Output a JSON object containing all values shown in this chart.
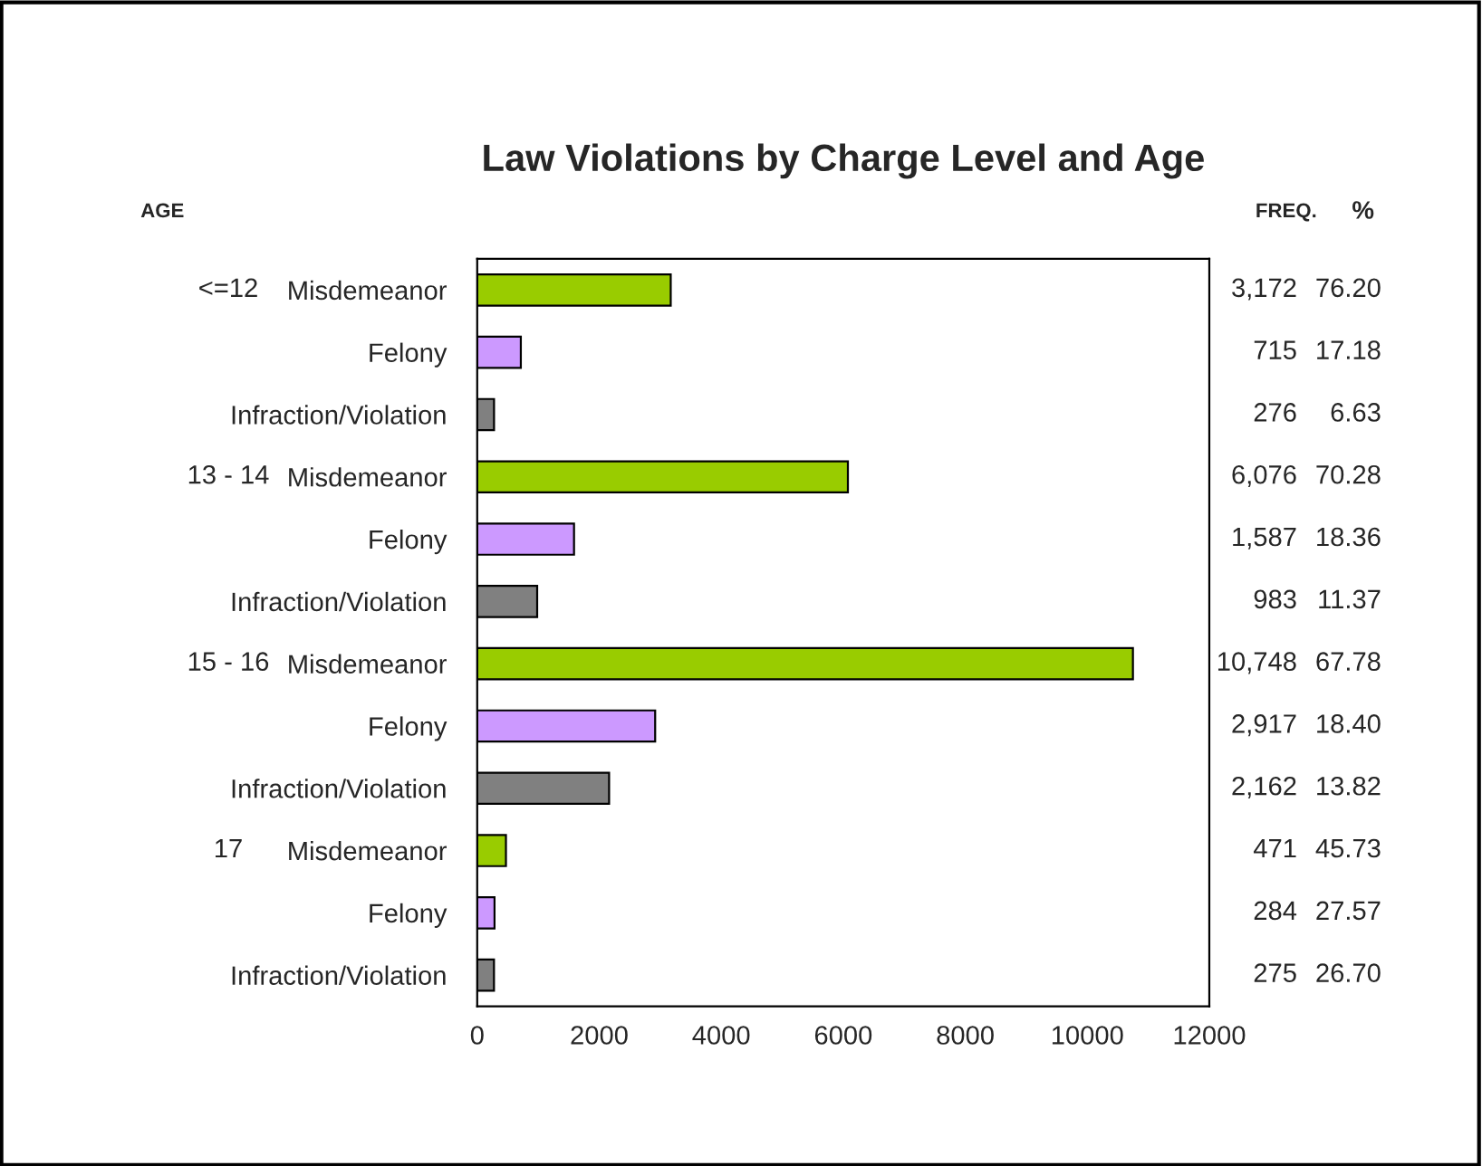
{
  "chart_data": {
    "type": "bar",
    "orientation": "horizontal",
    "title": "Law Violations by Charge Level and Age",
    "categories": [
      "Misdemeanor",
      "Felony",
      "Infraction/Violation",
      "Misdemeanor",
      "Felony",
      "Infraction/Violation",
      "Misdemeanor",
      "Felony",
      "Infraction/Violation",
      "Misdemeanor",
      "Felony",
      "Infraction/Violation"
    ],
    "values": [
      3172,
      715,
      276,
      6076,
      1587,
      983,
      10748,
      2917,
      2162,
      471,
      284,
      275
    ],
    "colors": [
      "#99cc00",
      "#cc99ff",
      "#808080",
      "#99cc00",
      "#cc99ff",
      "#808080",
      "#99cc00",
      "#cc99ff",
      "#808080",
      "#99cc00",
      "#cc99ff",
      "#808080"
    ],
    "value_labels": [
      "3,172",
      "715",
      "276",
      "6,076",
      "1,587",
      "983",
      "10,748",
      "2,917",
      "2,162",
      "471",
      "284",
      "275"
    ],
    "xlim": [
      0,
      12000
    ],
    "xticks": [
      0,
      2000,
      4000,
      6000,
      8000,
      10000,
      12000
    ],
    "grid": false,
    "annotations": [
      "AGE",
      "FREQ.",
      "%",
      "<=12",
      "13 - 14",
      "15 - 16",
      "17",
      "76.20",
      "17.18",
      "6.63",
      "70.28",
      "18.36",
      "11.37",
      "67.78",
      "18.40",
      "13.82",
      "45.73",
      "27.57",
      "26.70"
    ]
  }
}
